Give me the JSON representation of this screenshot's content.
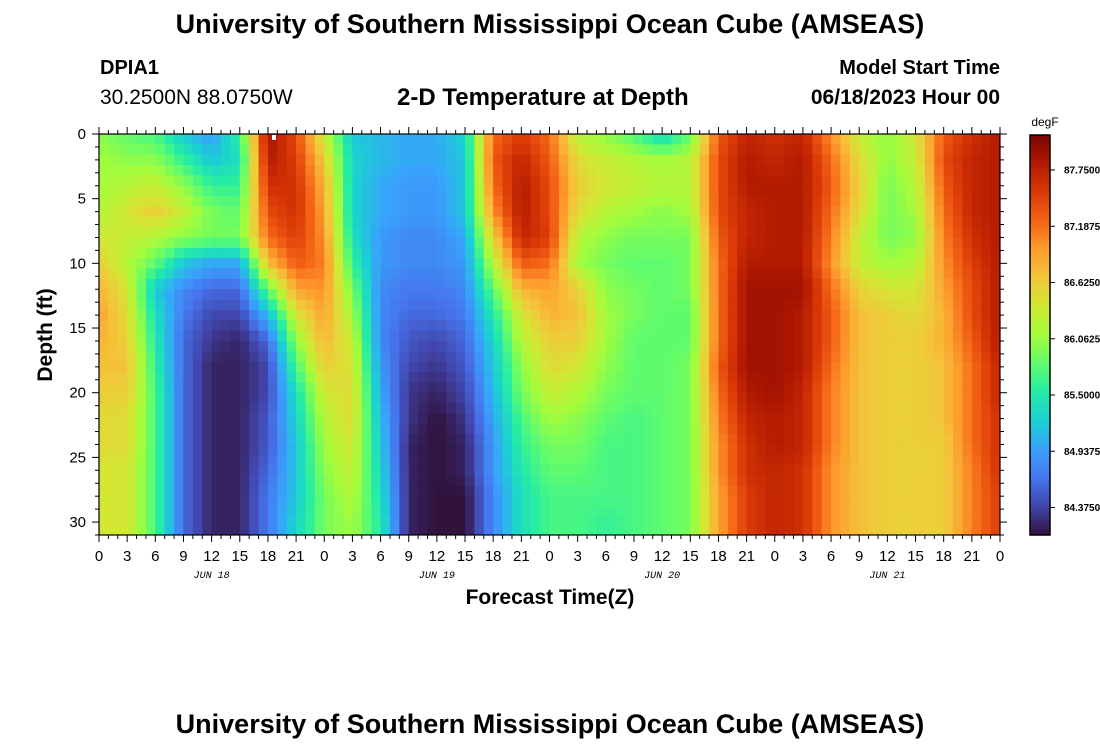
{
  "header": {
    "title": "University of Southern Mississippi Ocean Cube (AMSEAS)",
    "station_id": "DPIA1",
    "coords": "30.2500N  88.0750W",
    "subtitle": "2-D Temperature at Depth",
    "model_label": "Model Start Time",
    "model_time": "06/18/2023 Hour 00"
  },
  "footer": {
    "title": "University of Southern Mississippi Ocean Cube (AMSEAS)"
  },
  "chart_data": {
    "type": "heatmap",
    "title": "2-D Temperature at Depth",
    "xlabel": "Forecast Time(Z)",
    "ylabel": "Depth (ft)",
    "xlim": [
      0,
      96
    ],
    "ylim": [
      0,
      31
    ],
    "x_ticks": [
      {
        "hour": 0,
        "label": "0"
      },
      {
        "hour": 3,
        "label": "3"
      },
      {
        "hour": 6,
        "label": "6"
      },
      {
        "hour": 9,
        "label": "9"
      },
      {
        "hour": 12,
        "label": "12"
      },
      {
        "hour": 15,
        "label": "15"
      },
      {
        "hour": 18,
        "label": "18"
      },
      {
        "hour": 21,
        "label": "21"
      },
      {
        "hour": 24,
        "label": "0"
      },
      {
        "hour": 27,
        "label": "3"
      },
      {
        "hour": 30,
        "label": "6"
      },
      {
        "hour": 33,
        "label": "9"
      },
      {
        "hour": 36,
        "label": "12"
      },
      {
        "hour": 39,
        "label": "15"
      },
      {
        "hour": 42,
        "label": "18"
      },
      {
        "hour": 45,
        "label": "21"
      },
      {
        "hour": 48,
        "label": "0"
      },
      {
        "hour": 51,
        "label": "3"
      },
      {
        "hour": 54,
        "label": "6"
      },
      {
        "hour": 57,
        "label": "9"
      },
      {
        "hour": 60,
        "label": "12"
      },
      {
        "hour": 63,
        "label": "15"
      },
      {
        "hour": 66,
        "label": "18"
      },
      {
        "hour": 69,
        "label": "21"
      },
      {
        "hour": 72,
        "label": "0"
      },
      {
        "hour": 75,
        "label": "3"
      },
      {
        "hour": 78,
        "label": "6"
      },
      {
        "hour": 81,
        "label": "9"
      },
      {
        "hour": 84,
        "label": "12"
      },
      {
        "hour": 87,
        "label": "15"
      },
      {
        "hour": 90,
        "label": "18"
      },
      {
        "hour": 93,
        "label": "21"
      },
      {
        "hour": 96,
        "label": "0"
      }
    ],
    "date_labels": [
      {
        "hour": 12,
        "label": "JUN 18"
      },
      {
        "hour": 36,
        "label": "JUN 19"
      },
      {
        "hour": 60,
        "label": "JUN 20"
      },
      {
        "hour": 84,
        "label": "JUN 21"
      }
    ],
    "y_ticks": [
      0,
      5,
      10,
      15,
      20,
      25,
      30
    ],
    "colorbar": {
      "units": "degF",
      "vmin": 84.1,
      "vmax": 88.1,
      "ticks": [
        87.75,
        87.1875,
        86.625,
        86.0625,
        85.5,
        84.9375,
        84.375
      ],
      "tick_labels": [
        "87.7500",
        "87.1875",
        "86.6250",
        "86.0625",
        "85.5000",
        "84.9375",
        "84.3750"
      ],
      "colors": [
        "#30123b",
        "#4145ab",
        "#4675ed",
        "#39a2fc",
        "#1bcfd4",
        "#24eca6",
        "#61fc6c",
        "#a4fc3b",
        "#d1e834",
        "#f3c63a",
        "#fe9b2d",
        "#f36315",
        "#d93806",
        "#b11901",
        "#7a0403"
      ]
    },
    "depths_ft": [
      0,
      2,
      4,
      6,
      8,
      10,
      12,
      14,
      16,
      18,
      20,
      22,
      24,
      26,
      28,
      30
    ],
    "hours": [
      0,
      3,
      6,
      9,
      12,
      15,
      18,
      21,
      24,
      27,
      30,
      33,
      36,
      39,
      42,
      45,
      48,
      51,
      54,
      57,
      60,
      63,
      66,
      69,
      72,
      75,
      78,
      81,
      84,
      87,
      90,
      93,
      96
    ],
    "temperature_degF": [
      [
        86.0,
        85.8,
        85.7,
        85.2,
        84.9,
        85.6,
        87.9,
        87.4,
        86.3,
        85.2,
        85.1,
        85.0,
        85.0,
        85.3,
        87.2,
        87.5,
        87.2,
        86.2,
        86.0,
        85.7,
        85.3,
        85.8,
        87.3,
        87.7,
        87.6,
        87.7,
        87.0,
        86.3,
        86.0,
        86.4,
        87.3,
        87.6,
        87.8
      ],
      [
        86.1,
        86.0,
        86.0,
        85.6,
        85.2,
        85.4,
        87.8,
        87.5,
        86.6,
        85.3,
        85.1,
        85.0,
        85.0,
        85.2,
        87.3,
        87.7,
        87.3,
        86.5,
        86.3,
        86.2,
        86.1,
        86.2,
        87.4,
        87.8,
        87.7,
        87.8,
        87.2,
        86.5,
        86.0,
        86.3,
        87.4,
        87.7,
        87.8
      ],
      [
        86.1,
        86.2,
        86.3,
        86.0,
        85.6,
        85.6,
        87.6,
        87.6,
        86.8,
        85.3,
        85.0,
        84.9,
        84.9,
        85.2,
        87.2,
        87.8,
        87.4,
        86.6,
        86.4,
        86.3,
        86.2,
        86.2,
        87.4,
        87.8,
        87.8,
        87.8,
        87.3,
        86.6,
        85.9,
        86.2,
        87.3,
        87.7,
        87.8
      ],
      [
        86.2,
        86.4,
        86.6,
        86.3,
        85.9,
        85.8,
        87.4,
        87.6,
        86.9,
        85.3,
        85.0,
        84.9,
        84.9,
        85.2,
        87.0,
        87.8,
        87.4,
        86.5,
        86.2,
        86.1,
        86.0,
        86.1,
        87.4,
        87.7,
        87.8,
        87.8,
        87.2,
        86.5,
        85.9,
        86.1,
        87.2,
        87.7,
        87.8
      ],
      [
        86.4,
        86.3,
        86.2,
        86.0,
        85.9,
        85.9,
        87.2,
        87.5,
        87.0,
        85.4,
        84.9,
        84.8,
        84.8,
        85.0,
        86.6,
        87.7,
        87.5,
        86.2,
        86.0,
        85.9,
        85.9,
        85.9,
        87.3,
        87.7,
        87.8,
        87.8,
        87.1,
        86.3,
        85.9,
        86.0,
        87.1,
        87.6,
        87.8
      ],
      [
        86.6,
        86.2,
        85.8,
        85.2,
        85.0,
        85.0,
        86.7,
        87.3,
        87.1,
        85.6,
        84.9,
        84.8,
        84.8,
        84.9,
        86.2,
        87.3,
        87.2,
        86.1,
        85.9,
        85.8,
        85.8,
        85.9,
        87.2,
        87.8,
        87.8,
        87.8,
        87.0,
        86.3,
        86.1,
        86.2,
        87.0,
        87.5,
        87.8
      ],
      [
        86.8,
        86.4,
        85.2,
        84.8,
        84.6,
        84.6,
        85.8,
        86.9,
        87.0,
        85.9,
        84.8,
        84.7,
        84.7,
        84.8,
        85.8,
        86.8,
        86.9,
        86.6,
        86.0,
        85.9,
        85.8,
        85.9,
        87.2,
        87.9,
        87.9,
        87.9,
        87.2,
        86.6,
        86.4,
        86.4,
        86.9,
        87.4,
        87.8
      ],
      [
        86.9,
        86.5,
        85.4,
        84.7,
        84.4,
        84.4,
        85.1,
        86.4,
        86.9,
        86.1,
        84.8,
        84.6,
        84.6,
        84.7,
        85.5,
        86.4,
        86.8,
        86.7,
        86.1,
        85.9,
        85.8,
        85.8,
        87.2,
        87.9,
        87.9,
        87.8,
        87.3,
        86.7,
        86.6,
        86.5,
        86.8,
        87.4,
        87.8
      ],
      [
        86.8,
        86.6,
        85.5,
        84.6,
        84.3,
        84.2,
        84.6,
        86.0,
        86.8,
        86.3,
        84.8,
        84.5,
        84.4,
        84.6,
        85.3,
        86.2,
        86.6,
        86.6,
        86.1,
        85.8,
        85.8,
        85.8,
        87.2,
        87.9,
        87.9,
        87.8,
        87.3,
        86.7,
        86.6,
        86.6,
        86.8,
        87.3,
        87.8
      ],
      [
        86.7,
        86.7,
        85.6,
        84.6,
        84.2,
        84.2,
        84.4,
        85.7,
        86.6,
        86.4,
        84.9,
        84.4,
        84.3,
        84.5,
        85.2,
        86.0,
        86.5,
        86.4,
        86.0,
        85.8,
        85.8,
        85.9,
        87.3,
        87.9,
        87.9,
        87.8,
        87.2,
        86.7,
        86.6,
        86.6,
        86.7,
        87.2,
        87.7
      ],
      [
        86.6,
        86.6,
        85.7,
        84.6,
        84.2,
        84.2,
        84.4,
        85.4,
        86.4,
        86.5,
        85.0,
        84.3,
        84.2,
        84.4,
        85.1,
        85.9,
        86.3,
        86.2,
        85.9,
        85.8,
        85.8,
        85.9,
        87.2,
        87.8,
        87.9,
        87.7,
        87.1,
        86.7,
        86.6,
        86.6,
        86.7,
        87.2,
        87.7
      ],
      [
        86.5,
        86.5,
        85.7,
        84.6,
        84.2,
        84.2,
        84.5,
        85.3,
        86.2,
        86.5,
        85.1,
        84.3,
        84.1,
        84.3,
        85.0,
        85.7,
        86.1,
        86.0,
        85.8,
        85.7,
        85.8,
        85.9,
        87.1,
        87.7,
        87.8,
        87.7,
        87.1,
        86.7,
        86.6,
        86.6,
        86.7,
        87.2,
        87.6
      ],
      [
        86.5,
        86.5,
        85.7,
        84.6,
        84.2,
        84.2,
        84.5,
        85.2,
        86.1,
        86.4,
        85.2,
        84.2,
        84.1,
        84.2,
        84.9,
        85.6,
        85.9,
        85.9,
        85.7,
        85.7,
        85.8,
        85.9,
        87.0,
        87.6,
        87.8,
        87.7,
        87.1,
        86.7,
        86.6,
        86.6,
        86.6,
        87.2,
        87.6
      ],
      [
        86.4,
        86.4,
        85.7,
        84.6,
        84.2,
        84.2,
        84.6,
        85.2,
        86.0,
        86.3,
        85.3,
        84.2,
        84.1,
        84.2,
        84.9,
        85.5,
        85.8,
        85.8,
        85.7,
        85.7,
        85.8,
        85.9,
        87.0,
        87.6,
        87.7,
        87.6,
        87.0,
        86.7,
        86.6,
        86.6,
        86.6,
        87.1,
        87.6
      ],
      [
        86.4,
        86.4,
        85.7,
        84.6,
        84.2,
        84.2,
        84.7,
        85.2,
        85.9,
        86.2,
        85.4,
        84.2,
        84.1,
        84.1,
        84.8,
        85.4,
        85.7,
        85.7,
        85.7,
        85.7,
        85.8,
        85.9,
        86.9,
        87.5,
        87.7,
        87.6,
        87.0,
        86.7,
        86.6,
        86.6,
        86.6,
        87.1,
        87.5
      ],
      [
        86.4,
        86.4,
        85.7,
        84.6,
        84.2,
        84.2,
        84.7,
        85.3,
        85.9,
        86.1,
        85.5,
        84.2,
        84.1,
        84.1,
        84.8,
        85.4,
        85.7,
        85.7,
        85.6,
        85.7,
        85.8,
        85.9,
        86.9,
        87.5,
        87.7,
        87.6,
        87.0,
        86.7,
        86.6,
        86.6,
        86.6,
        87.1,
        87.5
      ]
    ]
  }
}
